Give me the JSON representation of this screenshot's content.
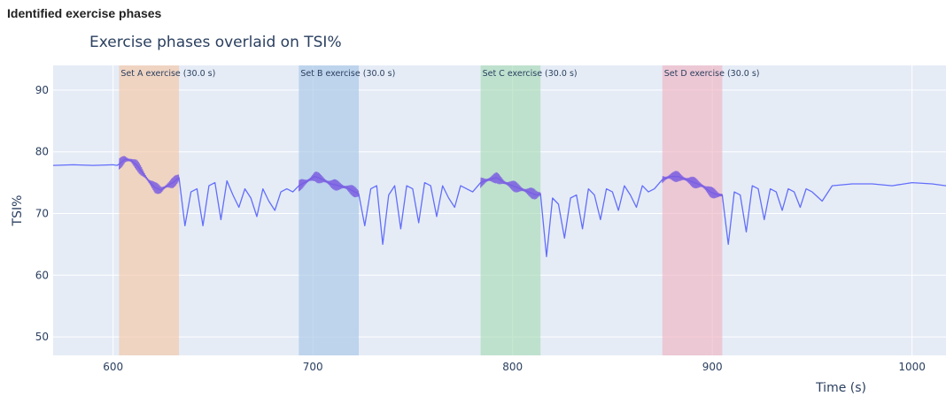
{
  "header": {
    "title": "Identified exercise phases"
  },
  "chart_data": {
    "type": "line",
    "title": "Exercise phases overlaid on TSI%",
    "xlabel": "Time (s)",
    "ylabel": "TSI%",
    "xlim": [
      570,
      1017
    ],
    "ylim": [
      47,
      94
    ],
    "x_ticks": [
      600,
      700,
      800,
      900,
      1000
    ],
    "y_ticks": [
      50,
      60,
      70,
      80,
      90
    ],
    "grid": true,
    "colors": {
      "line": "#636efa",
      "line_dense": "#7a5ce0",
      "plot_bg": "#e5ecf6",
      "grid": "#ffffff"
    },
    "phases": [
      {
        "label": "Set A exercise (30.0 s)",
        "start": 603,
        "end": 633,
        "color": "#f4c7a6"
      },
      {
        "label": "Set B exercise (30.0 s)",
        "start": 693,
        "end": 723,
        "color": "#a7c7e7"
      },
      {
        "label": "Set C exercise (30.0 s)",
        "start": 784,
        "end": 814,
        "color": "#a9dbb8"
      },
      {
        "label": "Set D exercise (30.0 s)",
        "start": 875,
        "end": 905,
        "color": "#f0b6c3"
      }
    ],
    "series": [
      {
        "x": [
          570,
          580,
          590,
          600,
          602,
          603,
          606,
          609,
          612,
          615,
          618,
          621,
          624,
          627,
          630,
          633,
          636,
          639,
          642,
          645,
          648,
          651,
          654,
          657,
          660,
          663,
          666,
          669,
          672,
          675,
          678,
          681,
          684,
          687,
          690,
          693,
          697,
          701,
          705,
          709,
          713,
          717,
          721,
          723,
          726,
          729,
          732,
          735,
          738,
          741,
          744,
          747,
          750,
          753,
          756,
          759,
          762,
          765,
          768,
          771,
          774,
          777,
          780,
          784,
          788,
          792,
          796,
          800,
          804,
          808,
          812,
          814,
          817,
          820,
          823,
          826,
          829,
          832,
          835,
          838,
          841,
          844,
          847,
          850,
          853,
          856,
          859,
          862,
          865,
          868,
          871,
          875,
          879,
          883,
          887,
          891,
          895,
          899,
          903,
          905,
          908,
          911,
          914,
          917,
          920,
          923,
          926,
          929,
          932,
          935,
          938,
          941,
          944,
          947,
          950,
          955,
          960,
          970,
          980,
          990,
          1000,
          1010,
          1017
        ],
        "y": [
          77.8,
          77.9,
          77.8,
          77.9,
          77.8,
          78,
          78.8,
          78.6,
          77.8,
          76.5,
          75.2,
          74.2,
          73.8,
          74.5,
          75,
          75.8,
          68,
          73.5,
          74,
          68,
          74.5,
          75,
          69,
          75.3,
          73,
          71,
          74,
          72.5,
          69.5,
          74,
          72,
          70.5,
          73.5,
          74,
          73.5,
          74.5,
          75.2,
          76,
          75.5,
          74.8,
          74.5,
          74.2,
          73.5,
          73.2,
          68,
          74,
          74.5,
          65,
          73,
          74.5,
          67.5,
          74.5,
          74,
          68.5,
          75,
          74.5,
          69.5,
          74.5,
          72.5,
          71,
          74.5,
          74,
          73.5,
          75,
          75.5,
          75.8,
          75,
          74.5,
          74,
          73.5,
          73,
          73.2,
          63,
          72.5,
          71.5,
          66,
          72.5,
          73,
          67.5,
          74,
          73,
          69,
          74,
          73.5,
          70.5,
          74.5,
          73,
          71,
          74.5,
          73.5,
          74,
          75.5,
          76,
          76,
          75.5,
          75,
          74.5,
          73.5,
          73,
          73,
          65,
          73.5,
          73,
          67,
          74.5,
          74,
          69,
          74,
          73.5,
          70.5,
          74,
          73.5,
          71,
          74,
          73.5,
          72,
          74.5,
          74.8,
          74.8,
          74.5,
          75,
          74.8,
          74.5
        ]
      }
    ]
  }
}
